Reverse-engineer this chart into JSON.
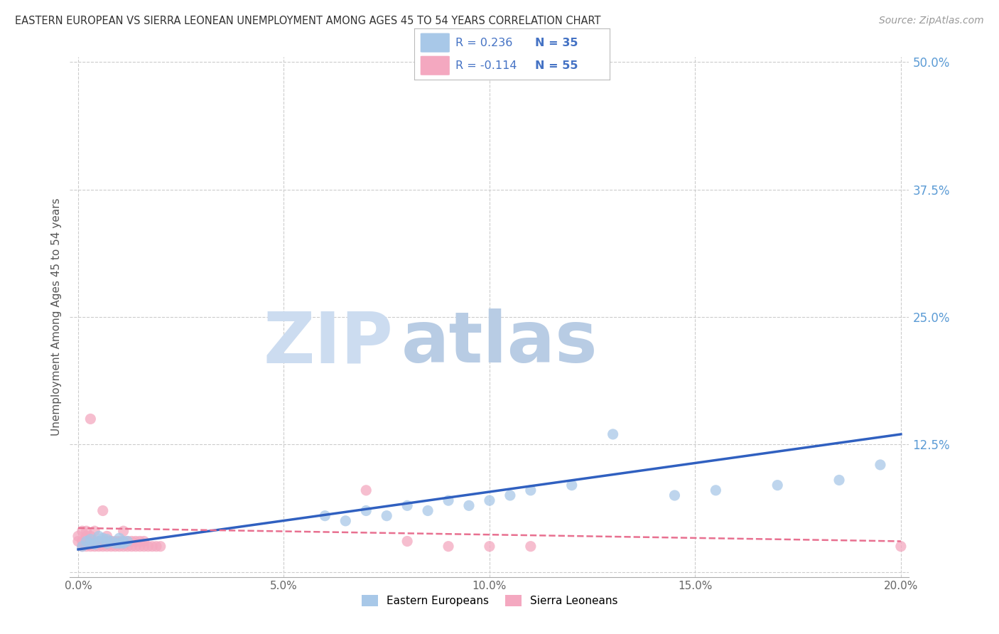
{
  "title": "EASTERN EUROPEAN VS SIERRA LEONEAN UNEMPLOYMENT AMONG AGES 45 TO 54 YEARS CORRELATION CHART",
  "source": "Source: ZipAtlas.com",
  "ylabel": "Unemployment Among Ages 45 to 54 years",
  "xlim": [
    -0.002,
    0.202
  ],
  "ylim": [
    -0.005,
    0.505
  ],
  "xticks": [
    0.0,
    0.05,
    0.1,
    0.15,
    0.2
  ],
  "yticks_right": [
    0.0,
    0.125,
    0.25,
    0.375,
    0.5
  ],
  "ytick_labels_right": [
    "",
    "12.5%",
    "25.0%",
    "37.5%",
    "50.0%"
  ],
  "xtick_labels": [
    "0.0%",
    "5.0%",
    "10.0%",
    "15.0%",
    "20.0%"
  ],
  "blue_R": "0.236",
  "blue_N": "35",
  "pink_R": "-0.114",
  "pink_N": "55",
  "blue_color": "#a8c8e8",
  "pink_color": "#f4a8c0",
  "blue_line_color": "#3060c0",
  "pink_line_color": "#e87090",
  "legend_label_blue": "Eastern Europeans",
  "legend_label_pink": "Sierra Leoneans",
  "watermark_zip": "ZIP",
  "watermark_atlas": "atlas",
  "watermark_color_zip": "#ccdcf0",
  "watermark_color_atlas": "#b8cce4",
  "blue_scatter_x": [
    0.001,
    0.002,
    0.003,
    0.003,
    0.004,
    0.005,
    0.005,
    0.006,
    0.007,
    0.007,
    0.008,
    0.009,
    0.01,
    0.01,
    0.011,
    0.011,
    0.012,
    0.06,
    0.065,
    0.07,
    0.075,
    0.08,
    0.085,
    0.09,
    0.095,
    0.1,
    0.105,
    0.11,
    0.12,
    0.13,
    0.145,
    0.155,
    0.17,
    0.185,
    0.195
  ],
  "blue_scatter_y": [
    0.025,
    0.03,
    0.028,
    0.032,
    0.027,
    0.03,
    0.035,
    0.033,
    0.028,
    0.032,
    0.03,
    0.028,
    0.033,
    0.028,
    0.03,
    0.028,
    0.03,
    0.055,
    0.05,
    0.06,
    0.055,
    0.065,
    0.06,
    0.07,
    0.065,
    0.07,
    0.075,
    0.08,
    0.085,
    0.135,
    0.075,
    0.08,
    0.085,
    0.09,
    0.105
  ],
  "pink_scatter_x": [
    0.0,
    0.0,
    0.001,
    0.001,
    0.001,
    0.002,
    0.002,
    0.002,
    0.002,
    0.003,
    0.003,
    0.003,
    0.003,
    0.003,
    0.004,
    0.004,
    0.004,
    0.005,
    0.005,
    0.005,
    0.006,
    0.006,
    0.006,
    0.007,
    0.007,
    0.007,
    0.008,
    0.008,
    0.009,
    0.009,
    0.01,
    0.01,
    0.011,
    0.011,
    0.011,
    0.012,
    0.012,
    0.013,
    0.013,
    0.014,
    0.014,
    0.015,
    0.015,
    0.016,
    0.016,
    0.017,
    0.018,
    0.019,
    0.02,
    0.07,
    0.08,
    0.09,
    0.1,
    0.11,
    0.2
  ],
  "pink_scatter_y": [
    0.03,
    0.035,
    0.025,
    0.03,
    0.04,
    0.025,
    0.03,
    0.035,
    0.04,
    0.025,
    0.03,
    0.035,
    0.028,
    0.15,
    0.025,
    0.03,
    0.04,
    0.025,
    0.03,
    0.028,
    0.025,
    0.06,
    0.03,
    0.025,
    0.03,
    0.035,
    0.025,
    0.03,
    0.025,
    0.03,
    0.025,
    0.03,
    0.025,
    0.03,
    0.04,
    0.025,
    0.03,
    0.025,
    0.03,
    0.025,
    0.03,
    0.025,
    0.03,
    0.025,
    0.03,
    0.025,
    0.025,
    0.025,
    0.025,
    0.08,
    0.03,
    0.025,
    0.025,
    0.025,
    0.025
  ],
  "blue_trend_x": [
    0.0,
    0.2
  ],
  "blue_trend_y": [
    0.022,
    0.135
  ],
  "pink_trend_x": [
    0.0,
    0.2
  ],
  "pink_trend_y": [
    0.043,
    0.03
  ]
}
